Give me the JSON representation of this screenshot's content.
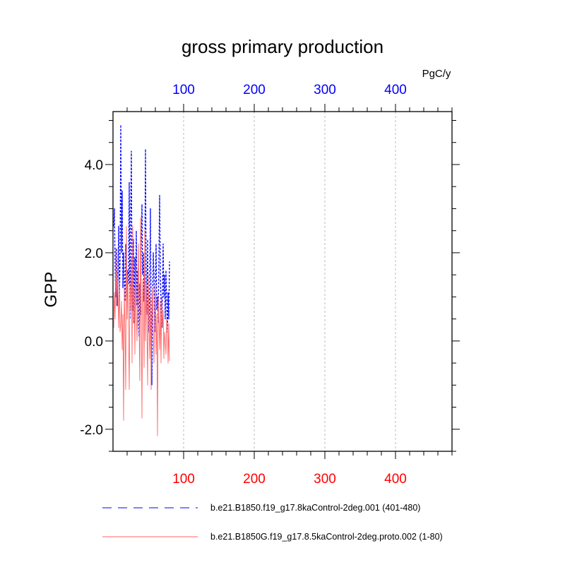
{
  "chart_data": {
    "type": "line",
    "title": "gross primary production",
    "ylabel": "GPP",
    "units_label": "PgC/y",
    "xlim": [
      0,
      480
    ],
    "ylim": [
      -2.5,
      5.2
    ],
    "grid_x": true,
    "grid_y": false,
    "top_axis": {
      "ticks": [
        100,
        200,
        300,
        400
      ],
      "labels": [
        "100",
        "200",
        "300",
        "400"
      ],
      "color": "#0000ff"
    },
    "bottom_axis": {
      "ticks": [
        100,
        200,
        300,
        400
      ],
      "labels": [
        "100",
        "200",
        "300",
        "400"
      ],
      "color": "#ff0000"
    },
    "y_axis": {
      "ticks": [
        -2,
        0,
        2,
        4
      ],
      "labels": [
        "-2.0",
        "0.0",
        "2.0",
        "4.0"
      ]
    },
    "legend_position": "bottom",
    "series": [
      {
        "name": "b.e21.B1850.f19_g17.8kaControl-2deg.001 (401-480)",
        "color": "#0000ff",
        "style": "dashed",
        "x": [
          1,
          2,
          3,
          4,
          5,
          6,
          7,
          8,
          9,
          10,
          11,
          12,
          13,
          14,
          15,
          16,
          17,
          18,
          19,
          20,
          21,
          22,
          23,
          24,
          25,
          26,
          27,
          28,
          29,
          30,
          31,
          32,
          33,
          34,
          35,
          36,
          37,
          38,
          39,
          40,
          41,
          42,
          43,
          44,
          45,
          46,
          47,
          48,
          49,
          50,
          51,
          52,
          53,
          54,
          55,
          56,
          57,
          58,
          59,
          60,
          61,
          62,
          63,
          64,
          65,
          66,
          67,
          68,
          69,
          70,
          71,
          72,
          73,
          74,
          75,
          76,
          77,
          78,
          79,
          80
        ],
        "y": [
          2.6,
          3.0,
          1.6,
          1.0,
          2.1,
          0.8,
          1.5,
          2.6,
          0.9,
          1.8,
          4.9,
          2.0,
          3.4,
          1.2,
          2.0,
          1.3,
          0.9,
          2.2,
          1.5,
          1.0,
          1.6,
          1.3,
          3.6,
          0.5,
          2.8,
          4.3,
          1.0,
          0.7,
          2.3,
          0.4,
          1.9,
          1.2,
          2.5,
          0.8,
          1.6,
          0.4,
          0.1,
          1.3,
          0.6,
          2.2,
          3.1,
          1.5,
          2.0,
          0.9,
          1.7,
          4.35,
          1.2,
          0.6,
          2.3,
          0.4,
          0.2,
          1.4,
          3.0,
          0.5,
          -1.0,
          0.9,
          2.0,
          1.5,
          0.2,
          1.3,
          2.2,
          0.7,
          1.0,
          0.4,
          1.9,
          3.3,
          1.5,
          0.9,
          0.3,
          1.0,
          2.2,
          1.0,
          1.5,
          0.5,
          1.6,
          0.9,
          0.2,
          1.1,
          0.5,
          1.8
        ]
      },
      {
        "name": "b.e21.B1850G.f19_g17.8.5kaControl-2deg.proto.002 (1-80)",
        "color": "#ff6666",
        "style": "solid",
        "x": [
          1,
          2,
          3,
          4,
          5,
          6,
          7,
          8,
          9,
          10,
          11,
          12,
          13,
          14,
          15,
          16,
          17,
          18,
          19,
          20,
          21,
          22,
          23,
          24,
          25,
          26,
          27,
          28,
          29,
          30,
          31,
          32,
          33,
          34,
          35,
          36,
          37,
          38,
          39,
          40,
          41,
          42,
          43,
          44,
          45,
          46,
          47,
          48,
          49,
          50,
          51,
          52,
          53,
          54,
          55,
          56,
          57,
          58,
          59,
          60,
          61,
          62,
          63,
          64,
          65,
          66,
          67,
          68,
          69,
          70,
          71,
          72,
          73,
          74,
          75,
          76,
          77,
          78,
          79,
          80
        ],
        "y": [
          0.3,
          1.1,
          0.5,
          2.1,
          0.8,
          1.6,
          1.0,
          0.3,
          1.4,
          0.2,
          0.4,
          0.9,
          -0.2,
          0.6,
          -1.8,
          1.2,
          0.3,
          -1.1,
          2.6,
          0.5,
          1.5,
          0.2,
          -1.1,
          1.3,
          0.7,
          1.9,
          -0.5,
          2.6,
          0.4,
          1.2,
          -0.3,
          1.8,
          0.6,
          0.0,
          1.1,
          2.2,
          0.3,
          -0.9,
          2.8,
          0.6,
          -1.75,
          1.4,
          0.8,
          -0.6,
          2.5,
          0.0,
          1.3,
          0.4,
          -1.0,
          1.5,
          0.3,
          -0.4,
          1.0,
          -1.1,
          0.5,
          1.2,
          0.2,
          -0.5,
          0.8,
          1.3,
          -0.3,
          0.6,
          -2.15,
          1.0,
          0.4,
          -0.2,
          0.9,
          -0.5,
          1.0,
          0.3,
          0.7,
          -0.4,
          0.2,
          0.0,
          -0.3,
          0.5,
          0.3,
          -0.5,
          0.4,
          -0.45
        ]
      }
    ]
  }
}
